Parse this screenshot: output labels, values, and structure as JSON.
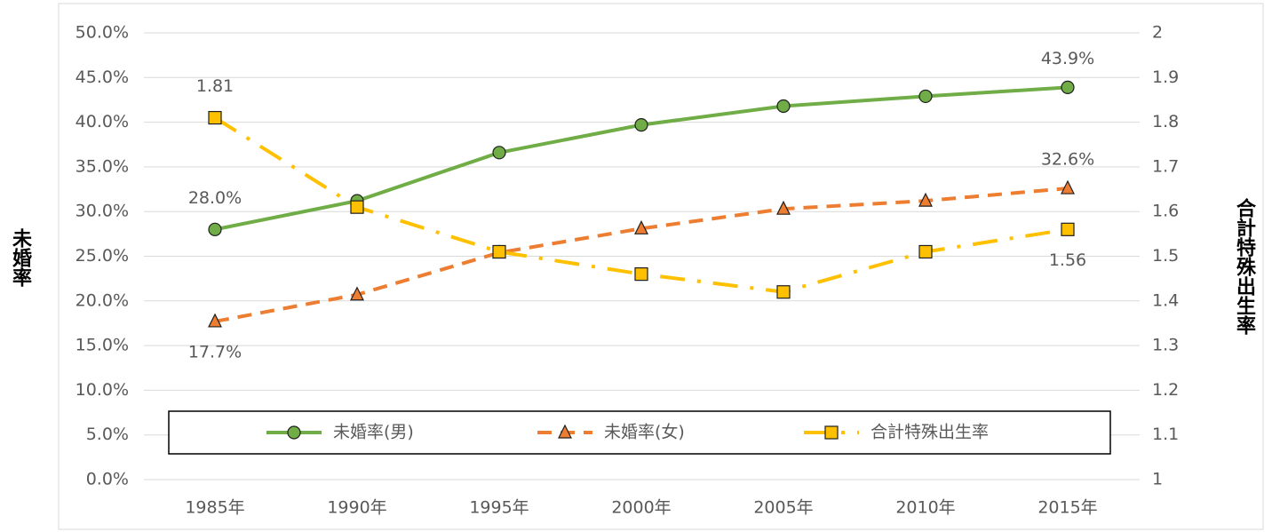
{
  "chart_data": {
    "type": "line",
    "categories": [
      "1985年",
      "1990年",
      "1995年",
      "2000年",
      "2005年",
      "2010年",
      "2015年"
    ],
    "y_label": "未婚率",
    "y2_label": "合計特殊出生率",
    "ylim": [
      0,
      50
    ],
    "yticks": [
      {
        "value": 0,
        "label": "0.0%"
      },
      {
        "value": 5,
        "label": "5.0%"
      },
      {
        "value": 10,
        "label": "10.0%"
      },
      {
        "value": 15,
        "label": "15.0%"
      },
      {
        "value": 20,
        "label": "20.0%"
      },
      {
        "value": 25,
        "label": "25.0%"
      },
      {
        "value": 30,
        "label": "30.0%"
      },
      {
        "value": 35,
        "label": "35.0%"
      },
      {
        "value": 40,
        "label": "40.0%"
      },
      {
        "value": 45,
        "label": "45.0%"
      },
      {
        "value": 50,
        "label": "50.0%"
      }
    ],
    "y2lim": [
      1,
      2
    ],
    "y2ticks": [
      1,
      1.1,
      1.2,
      1.3,
      1.4,
      1.5,
      1.6,
      1.7,
      1.8,
      1.9,
      2
    ],
    "grid": true,
    "legend": "bottom",
    "series": [
      {
        "name": "未婚率(男)",
        "color": "#70ad47",
        "marker": "circle",
        "dash": "solid",
        "values": [
          28.0,
          31.2,
          36.6,
          39.7,
          41.8,
          42.9,
          43.9
        ],
        "value_labels": [
          "28.0%",
          null,
          null,
          null,
          null,
          null,
          "43.9%"
        ]
      },
      {
        "name": "未婚率(女)",
        "color": "#ed7d31",
        "marker": "triangle",
        "dash": "dash",
        "values": [
          17.7,
          20.7,
          25.4,
          28.1,
          30.3,
          31.2,
          32.6
        ],
        "value_labels": [
          "17.7%",
          null,
          null,
          null,
          null,
          null,
          "32.6%"
        ]
      },
      {
        "name": "合計特殊出生率",
        "color": "#ffc000",
        "marker": "square",
        "dash": "dashdot",
        "axis": "y2",
        "values": [
          1.81,
          1.61,
          1.51,
          1.46,
          1.42,
          1.51,
          1.56
        ],
        "value_labels": [
          "1.81",
          null,
          null,
          null,
          null,
          null,
          "1.56"
        ]
      }
    ]
  }
}
